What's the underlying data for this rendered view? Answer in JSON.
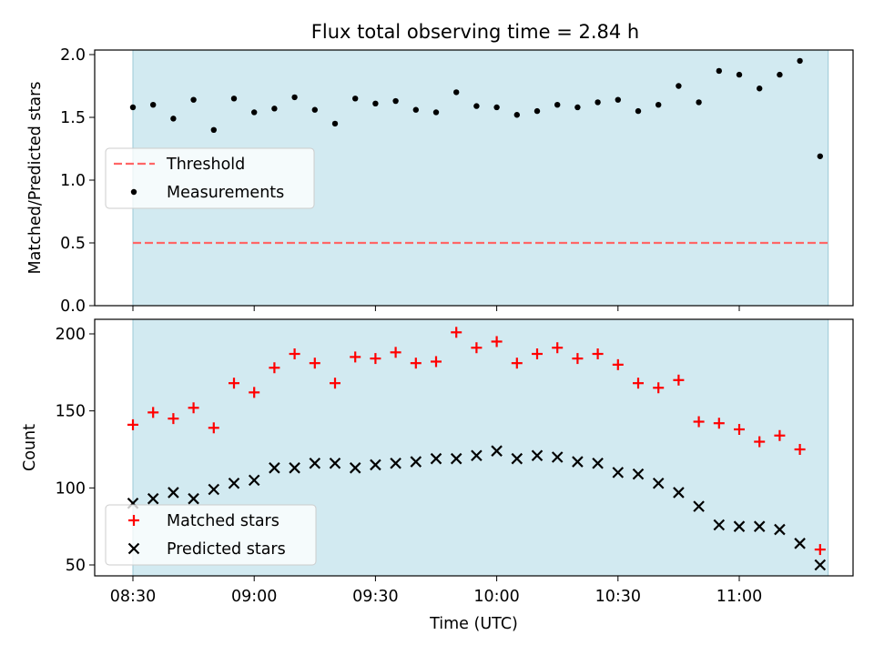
{
  "chart_data": [
    {
      "type": "scatter",
      "title": "Flux total observing time = 2.84 h",
      "xlabel": "",
      "ylabel": "Matched/Predicted stars",
      "ylim": [
        0,
        2.0
      ],
      "yticks": [
        "0.0",
        "0.5",
        "1.0",
        "1.5",
        "2.0"
      ],
      "shaded_region": {
        "from": "08:30",
        "to": "11:22",
        "color": "#add8e6"
      },
      "threshold": {
        "name": "Threshold",
        "value": 0.5,
        "color": "#ff6666",
        "style": "dashed"
      },
      "series": [
        {
          "name": "Measurements",
          "marker": "dot",
          "color": "#000000",
          "x": [
            "08:30",
            "08:35",
            "08:40",
            "08:45",
            "08:50",
            "08:55",
            "09:00",
            "09:05",
            "09:10",
            "09:15",
            "09:20",
            "09:25",
            "09:30",
            "09:35",
            "09:40",
            "09:45",
            "09:50",
            "09:55",
            "10:00",
            "10:05",
            "10:10",
            "10:15",
            "10:20",
            "10:25",
            "10:30",
            "10:35",
            "10:40",
            "10:45",
            "10:50",
            "10:55",
            "11:00",
            "11:05",
            "11:10",
            "11:15",
            "11:20"
          ],
          "y": [
            1.58,
            1.6,
            1.49,
            1.64,
            1.4,
            1.65,
            1.54,
            1.57,
            1.66,
            1.56,
            1.45,
            1.65,
            1.61,
            1.63,
            1.56,
            1.54,
            1.7,
            1.59,
            1.58,
            1.52,
            1.55,
            1.6,
            1.58,
            1.62,
            1.64,
            1.55,
            1.6,
            1.75,
            1.62,
            1.87,
            1.84,
            1.73,
            1.84,
            1.95,
            1.19
          ]
        }
      ],
      "legend": "center-left"
    },
    {
      "type": "scatter",
      "xlabel": "Time (UTC)",
      "ylabel": "Count",
      "ylim": [
        43,
        210
      ],
      "yticks": [
        "50",
        "100",
        "150",
        "200"
      ],
      "xticks": [
        "08:30",
        "09:00",
        "09:30",
        "10:00",
        "10:30",
        "11:00"
      ],
      "shaded_region": {
        "from": "08:30",
        "to": "11:22",
        "color": "#add8e6"
      },
      "series": [
        {
          "name": "Matched stars",
          "marker": "plus",
          "color": "#ff0000",
          "x": [
            "08:30",
            "08:35",
            "08:40",
            "08:45",
            "08:50",
            "08:55",
            "09:00",
            "09:05",
            "09:10",
            "09:15",
            "09:20",
            "09:25",
            "09:30",
            "09:35",
            "09:40",
            "09:45",
            "09:50",
            "09:55",
            "10:00",
            "10:05",
            "10:10",
            "10:15",
            "10:20",
            "10:25",
            "10:30",
            "10:35",
            "10:40",
            "10:45",
            "10:50",
            "10:55",
            "11:00",
            "11:05",
            "11:10",
            "11:15",
            "11:20"
          ],
          "y": [
            141,
            149,
            145,
            152,
            139,
            168,
            162,
            178,
            187,
            181,
            168,
            185,
            184,
            188,
            181,
            182,
            201,
            191,
            195,
            181,
            187,
            191,
            184,
            187,
            180,
            168,
            165,
            170,
            143,
            142,
            138,
            130,
            134,
            125,
            60
          ]
        },
        {
          "name": "Predicted stars",
          "marker": "x",
          "color": "#000000",
          "x": [
            "08:30",
            "08:35",
            "08:40",
            "08:45",
            "08:50",
            "08:55",
            "09:00",
            "09:05",
            "09:10",
            "09:15",
            "09:20",
            "09:25",
            "09:30",
            "09:35",
            "09:40",
            "09:45",
            "09:50",
            "09:55",
            "10:00",
            "10:05",
            "10:10",
            "10:15",
            "10:20",
            "10:25",
            "10:30",
            "10:35",
            "10:40",
            "10:45",
            "10:50",
            "10:55",
            "11:00",
            "11:05",
            "11:10",
            "11:15",
            "11:20"
          ],
          "y": [
            90,
            93,
            97,
            93,
            99,
            103,
            105,
            113,
            113,
            116,
            116,
            113,
            115,
            116,
            117,
            119,
            119,
            121,
            124,
            119,
            121,
            120,
            117,
            116,
            110,
            109,
            103,
            97,
            88,
            76,
            75,
            75,
            73,
            64,
            50
          ]
        }
      ],
      "legend": "lower-left"
    }
  ]
}
